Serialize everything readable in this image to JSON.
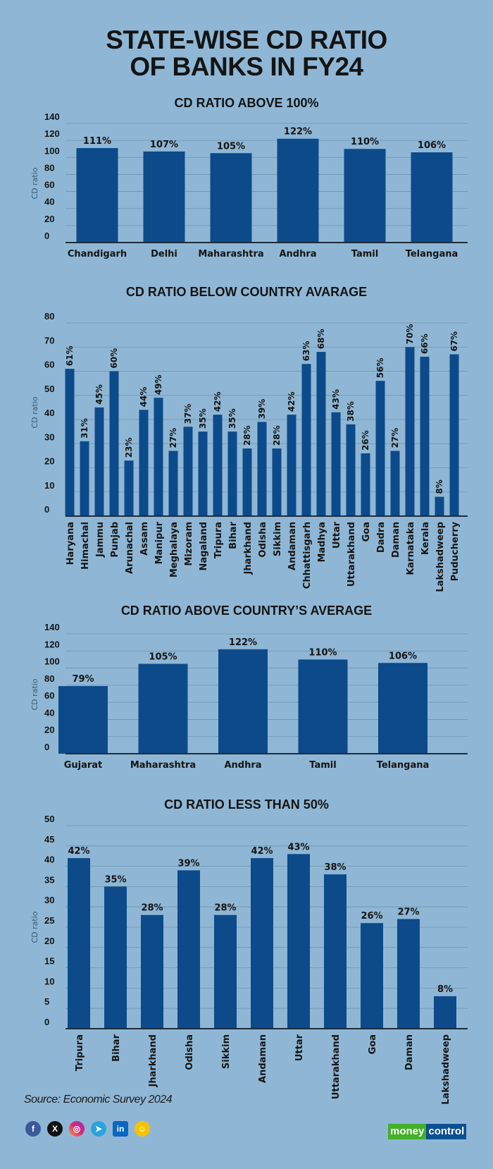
{
  "title": {
    "line1": "STATE-WISE CD RATIO",
    "line2": "OF BANKS IN FY24"
  },
  "colors": {
    "background": "#8fb7d5",
    "bar": "#0c4a8a",
    "text": "#141414",
    "grid": "#6f93ad"
  },
  "chart_data": [
    {
      "type": "bar",
      "title": "CD RATIO ABOVE 100%",
      "ylabel": "CD ratio",
      "ylim": [
        0,
        140
      ],
      "yticks": [
        0,
        20,
        40,
        60,
        80,
        100,
        120,
        140
      ],
      "grid": true,
      "categories": [
        "Chandigarh",
        "Delhi",
        "Maharashtra",
        "Andhra",
        "Tamil",
        "Telangana"
      ],
      "values": [
        111,
        107,
        105,
        122,
        110,
        106
      ],
      "data_labels": [
        "111%",
        "107%",
        "105%",
        "122%",
        "110%",
        "106%"
      ]
    },
    {
      "type": "bar",
      "title": "CD RATIO BELOW COUNTRY AVARAGE",
      "ylabel": "CD ratio",
      "ylim": [
        0,
        80
      ],
      "yticks": [
        0,
        10,
        20,
        30,
        40,
        50,
        60,
        70,
        80
      ],
      "grid": true,
      "categories": [
        "Haryana",
        "Himachal",
        "Jammu",
        "Punjab",
        "Arunachal",
        "Assam",
        "Manipur",
        "Meghalaya",
        "Mizoram",
        "Nagaland",
        "Tripura",
        "Bihar",
        "Jharkhand",
        "Odisha",
        "Sikkim",
        "Andaman",
        "Chhattisgarh",
        "Madhya",
        "Uttar",
        "Uttarakhand",
        "Goa",
        "Dadra",
        "Daman",
        "Karnataka",
        "Kerala",
        "Lakshadweep",
        "Puducherry"
      ],
      "values": [
        61,
        31,
        45,
        60,
        23,
        44,
        49,
        27,
        37,
        35,
        42,
        35,
        28,
        39,
        28,
        42,
        63,
        68,
        43,
        38,
        26,
        56,
        27,
        70,
        66,
        8,
        67
      ],
      "data_labels": [
        "61%",
        "31%",
        "45%",
        "60%",
        "23%",
        "44%",
        "49%",
        "27%",
        "37%",
        "35%",
        "42%",
        "35%",
        "28%",
        "39%",
        "28%",
        "42%",
        "63%",
        "68%",
        "43%",
        "38%",
        "26%",
        "56%",
        "27%",
        "70%",
        "66%",
        "8%",
        "67%"
      ]
    },
    {
      "type": "bar",
      "title": "CD RATIO ABOVE COUNTRY’S AVERAGE",
      "ylabel": "CD ratio",
      "ylim": [
        0,
        140
      ],
      "yticks": [
        0,
        20,
        40,
        60,
        80,
        100,
        120,
        140
      ],
      "grid": true,
      "categories": [
        "Gujarat",
        "Maharashtra",
        "Andhra",
        "Tamil",
        "Telangana"
      ],
      "values": [
        79,
        105,
        122,
        110,
        106
      ],
      "data_labels": [
        "79%",
        "105%",
        "122%",
        "110%",
        "106%"
      ]
    },
    {
      "type": "bar",
      "title": "CD RATIO LESS THAN 50%",
      "ylabel": "CD ratio",
      "ylim": [
        0,
        50
      ],
      "yticks": [
        0,
        5,
        10,
        15,
        20,
        25,
        30,
        35,
        40,
        45,
        50
      ],
      "grid": true,
      "categories": [
        "Tripura",
        "Bihar",
        "Jharkhand",
        "Odisha",
        "Sikkim",
        "Andaman",
        "Uttar",
        "Uttarakhand",
        "Goa",
        "Daman",
        "Lakshadweep"
      ],
      "values": [
        42,
        35,
        28,
        39,
        28,
        42,
        43,
        38,
        26,
        27,
        8
      ],
      "data_labels": [
        "42%",
        "35%",
        "28%",
        "39%",
        "28%",
        "42%",
        "43%",
        "38%",
        "26%",
        "27%",
        "8%"
      ]
    }
  ],
  "footer": {
    "source": "Source: Economic Survey 2024",
    "social_icons": [
      "facebook-icon",
      "x-icon",
      "instagram-icon",
      "telegram-icon",
      "linkedin-icon",
      "snapchat-icon"
    ],
    "logo": "moneycontrol"
  }
}
